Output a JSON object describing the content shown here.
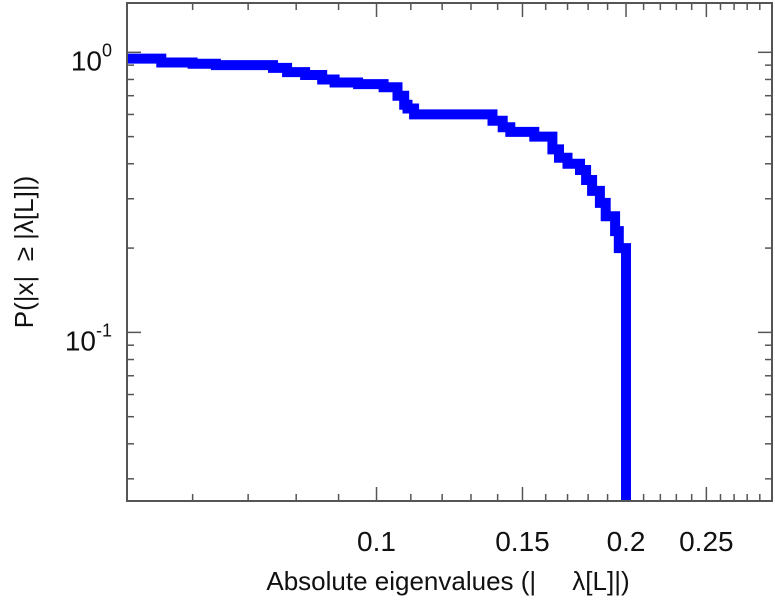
{
  "chart_data": {
    "type": "line",
    "xlabel": "Absolute eigenvalues (|     λ[L]|)",
    "ylabel": "P(|x|  ≥ |λ[L]|)",
    "xscale": "log",
    "yscale": "log",
    "xlim": [
      0.05,
      0.3
    ],
    "ylim": [
      0.025,
      1.5
    ],
    "x_ticks": [
      {
        "value": 0.1,
        "label": "0.1"
      },
      {
        "value": 0.15,
        "label": "0.15"
      },
      {
        "value": 0.2,
        "label": "0.2"
      },
      {
        "value": 0.25,
        "label": "0.25"
      }
    ],
    "y_ticks": [
      {
        "value": 1,
        "base": "10",
        "exp": "0"
      },
      {
        "value": 0.1,
        "base": "10",
        "exp": "-1"
      }
    ],
    "grid": false,
    "line_color": "#0000ff",
    "series": [
      {
        "style": "step",
        "x": [
          0.05,
          0.053,
          0.055,
          0.056,
          0.06,
          0.064,
          0.069,
          0.075,
          0.078,
          0.082,
          0.086,
          0.089,
          0.095,
          0.102,
          0.106,
          0.108,
          0.109,
          0.111,
          0.113,
          0.125,
          0.138,
          0.142,
          0.145,
          0.155,
          0.163,
          0.166,
          0.17,
          0.176,
          0.179,
          0.182,
          0.186,
          0.189,
          0.194,
          0.196,
          0.2,
          0.2
        ],
        "y": [
          0.95,
          0.95,
          0.92,
          0.92,
          0.91,
          0.9,
          0.9,
          0.88,
          0.85,
          0.83,
          0.8,
          0.78,
          0.77,
          0.75,
          0.7,
          0.65,
          0.63,
          0.6,
          0.6,
          0.6,
          0.57,
          0.54,
          0.52,
          0.5,
          0.45,
          0.42,
          0.4,
          0.38,
          0.35,
          0.32,
          0.29,
          0.26,
          0.23,
          0.2,
          0.2,
          0.025
        ]
      }
    ]
  }
}
